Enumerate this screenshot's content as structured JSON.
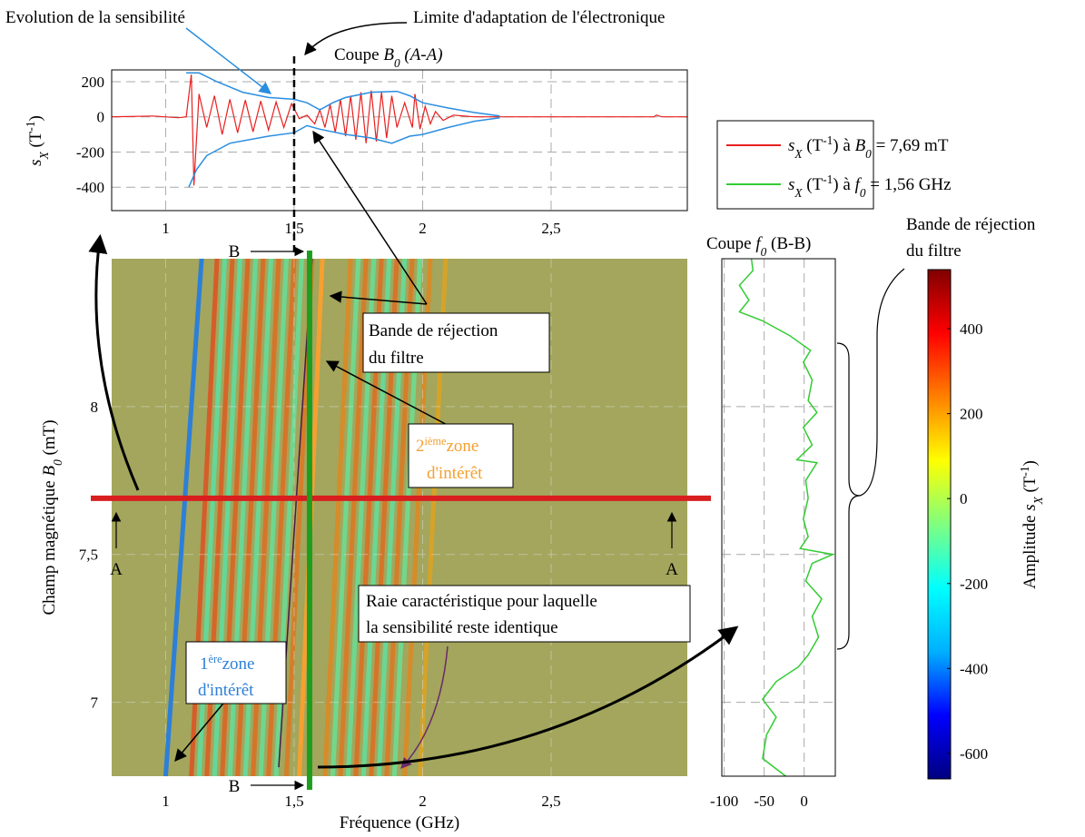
{
  "chart_data": [
    {
      "type": "line",
      "title_parts": [
        "Coupe ",
        "B",
        "0",
        " (A-A)"
      ],
      "ylabel_parts": [
        "s",
        "X",
        " (T",
        "-1",
        ")"
      ],
      "xlim": [
        0.79,
        3.03
      ],
      "ylim": [
        -533,
        267
      ],
      "xticks": [
        1,
        {
          "value": 1.5,
          "label": "1,5"
        },
        2,
        {
          "value": 2.5,
          "label": "2,5"
        }
      ],
      "yticks": [
        200,
        0,
        -200,
        -400
      ],
      "grid": true,
      "limit_x": 1.5,
      "series": [
        {
          "color": "#e8201f",
          "x": [
            0.79,
            0.95,
            1.05,
            1.08,
            1.1,
            1.11,
            1.13,
            1.16,
            1.19,
            1.22,
            1.25,
            1.28,
            1.31,
            1.34,
            1.37,
            1.4,
            1.43,
            1.46,
            1.49,
            1.52,
            1.55,
            1.58,
            1.6,
            1.62,
            1.64,
            1.66,
            1.68,
            1.7,
            1.72,
            1.74,
            1.76,
            1.78,
            1.8,
            1.82,
            1.84,
            1.86,
            1.88,
            1.9,
            1.93,
            1.96,
            1.97,
            1.99,
            2.01,
            2.03,
            2.05,
            2.08,
            2.12,
            2.2,
            2.9,
            2.91,
            2.93,
            3.03
          ],
          "values": [
            0,
            5,
            -5,
            0,
            240,
            -390,
            130,
            -60,
            120,
            -100,
            100,
            -90,
            95,
            -85,
            90,
            -75,
            85,
            -60,
            75,
            -10,
            10,
            -40,
            40,
            -60,
            70,
            -90,
            100,
            -110,
            120,
            -130,
            140,
            -150,
            150,
            -140,
            140,
            -120,
            120,
            -60,
            80,
            -60,
            130,
            -70,
            60,
            -40,
            30,
            -20,
            10,
            0,
            0,
            10,
            0,
            0
          ]
        },
        {
          "color": "#2a8ee0",
          "x": [
            1.08,
            1.13,
            1.2,
            1.3,
            1.4,
            1.5,
            1.55,
            1.6,
            1.65,
            1.7,
            1.8,
            1.9,
            1.95,
            2.0,
            2.1,
            2.2,
            2.3
          ],
          "values": [
            250,
            250,
            200,
            140,
            110,
            100,
            80,
            40,
            80,
            110,
            140,
            145,
            120,
            80,
            50,
            25,
            5
          ]
        },
        {
          "color": "#2a8ee0",
          "x": [
            1.09,
            1.12,
            1.16,
            1.25,
            1.4,
            1.5,
            1.55,
            1.6,
            1.7,
            1.8,
            1.88,
            1.95,
            2.0,
            2.1,
            2.2,
            2.3
          ],
          "values": [
            -400,
            -300,
            -220,
            -150,
            -110,
            -90,
            -50,
            -70,
            -100,
            -120,
            -150,
            -110,
            -100,
            -60,
            -25,
            -5
          ]
        }
      ]
    },
    {
      "type": "heatmap",
      "xlabel": "Fréquence (GHz)",
      "ylabel_parts": [
        "Champ magnétique ",
        "B",
        "0",
        " (mT)"
      ],
      "xlim": [
        0.79,
        3.03
      ],
      "ylim": [
        6.75,
        8.5
      ],
      "xticks": [
        1,
        {
          "value": 1.5,
          "label": "1,5"
        },
        2,
        {
          "value": 2.5,
          "label": "2,5"
        }
      ],
      "yticks": [
        7,
        {
          "value": 7.5,
          "label": "7,5"
        },
        8
      ],
      "grid": true,
      "background": "#a3a65c",
      "x_bottom": [
        1.1,
        1.13,
        1.16,
        1.19,
        1.22,
        1.25,
        1.28,
        1.31,
        1.34,
        1.37,
        1.4,
        1.43,
        1.47,
        1.62,
        1.65,
        1.68,
        1.71,
        1.74,
        1.77,
        1.8,
        1.83,
        1.86,
        1.89,
        1.93,
        1.99
      ],
      "x_top": [
        1.2,
        1.23,
        1.26,
        1.29,
        1.32,
        1.35,
        1.38,
        1.41,
        1.44,
        1.47,
        1.5,
        1.53,
        1.57,
        1.72,
        1.75,
        1.78,
        1.81,
        1.84,
        1.87,
        1.9,
        1.93,
        1.96,
        1.99,
        2.03,
        2.09
      ],
      "values": [
        350,
        -150,
        330,
        -150,
        320,
        -140,
        310,
        -140,
        300,
        -130,
        300,
        -130,
        280,
        250,
        -120,
        280,
        -130,
        300,
        -140,
        300,
        -140,
        280,
        -120,
        250,
        200
      ],
      "cut_B0": 7.69,
      "cut_B0_color": "#d81e1e",
      "cut_f0": 1.56,
      "cut_f0_color": "#1e9e1e",
      "zones": [
        {
          "color": "#2d7fd8",
          "x": [
            1.0,
            1.14
          ],
          "y": [
            6.75,
            8.5
          ]
        },
        {
          "color": "#f5a030",
          "x": [
            1.52,
            1.61
          ],
          "y": [
            6.75,
            8.5
          ]
        },
        {
          "color": "#4a1a4a",
          "x": [
            1.44,
            1.57
          ],
          "y": [
            6.78,
            8.5
          ]
        }
      ]
    },
    {
      "type": "line",
      "orientation": "vertical",
      "title_parts": [
        "Coupe ",
        "f",
        "0",
        " (B-B)"
      ],
      "xlim": [
        -103,
        39
      ],
      "xticks": [
        -100,
        -50,
        0
      ],
      "ylim": [
        6.75,
        8.5
      ],
      "ygrid": [
        7,
        7.5,
        8
      ],
      "grid": true,
      "series": [
        {
          "color": "#33cc33",
          "values": [
            -23,
            -52,
            -47,
            -35,
            -52,
            -35,
            -7,
            5,
            18,
            10,
            22,
            2,
            10,
            36,
            -5,
            5,
            -1,
            5,
            2,
            16,
            -9,
            10,
            -1,
            16,
            5,
            10,
            -1,
            8,
            -18,
            -52,
            -81,
            -69,
            -81,
            -64,
            -66
          ],
          "y": [
            6.75,
            6.81,
            6.89,
            6.95,
            7.01,
            7.07,
            7.12,
            7.16,
            7.22,
            7.29,
            7.35,
            7.41,
            7.47,
            7.5,
            7.52,
            7.56,
            7.62,
            7.69,
            7.75,
            7.81,
            7.82,
            7.87,
            7.93,
            7.98,
            8.02,
            8.09,
            8.15,
            8.19,
            8.24,
            8.29,
            8.32,
            8.36,
            8.41,
            8.46,
            8.5
          ]
        }
      ]
    },
    {
      "type": "colorbar",
      "label_parts": [
        "Amplitude ",
        "s",
        "X",
        " (T",
        "-1",
        ")"
      ],
      "clim": [
        -660,
        539
      ],
      "ticks": [
        400,
        200,
        0,
        -200,
        -400,
        -600
      ],
      "colors": [
        "#000080",
        "#0000ff",
        "#00b0ff",
        "#00ffff",
        "#7fff7f",
        "#ffff00",
        "#ff8000",
        "#ff0000",
        "#800000"
      ]
    }
  ],
  "legend": {
    "entries": [
      {
        "parts": [
          "s",
          "X",
          " (T",
          "-1",
          ") à ",
          "B",
          "0",
          " = 7,69 mT"
        ],
        "color": "#e8201f"
      },
      {
        "parts": [
          "s",
          "X",
          " (T",
          "-1",
          ") à ",
          "f",
          "0",
          " = 1,56 GHz"
        ],
        "color": "#33cc33"
      }
    ]
  },
  "annotations": {
    "evolution": "Evolution de la sensibilité",
    "limit": "Limite d'adaptation de l'électronique",
    "rejection_box": [
      "Bande de réjection",
      "du filtre"
    ],
    "zone2": [
      "2",
      "ième",
      "zone",
      "d'intérêt"
    ],
    "zone1": [
      "1",
      "ère",
      "zone",
      "d'intérêt"
    ],
    "raie": [
      "Raie caractéristique pour laquelle",
      "la sensibilité reste identique"
    ],
    "rejection_right": [
      "Bande de réjection",
      "du filtre"
    ],
    "A": "A",
    "B": "B"
  }
}
